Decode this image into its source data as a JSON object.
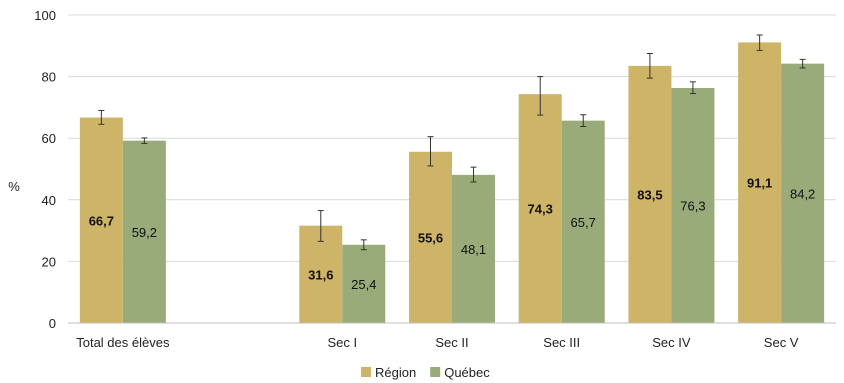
{
  "chart_data": {
    "type": "bar",
    "ylabel": "%",
    "ylim": [
      0,
      100
    ],
    "yticks": [
      0,
      20,
      40,
      60,
      80,
      100
    ],
    "grid": true,
    "legend_position": "bottom",
    "categories": [
      "Total des élèves",
      "",
      "Sec I",
      "Sec II",
      "Sec III",
      "Sec IV",
      "Sec V"
    ],
    "series": [
      {
        "name": "Région",
        "color": "#CDB466",
        "bold_labels": true,
        "values": [
          66.7,
          null,
          31.6,
          55.6,
          74.3,
          83.5,
          91.1
        ],
        "labels": [
          "66,7",
          "",
          "31,6",
          "55,6",
          "74,3",
          "83,5",
          "91,1"
        ],
        "error_low": [
          64.5,
          null,
          26.5,
          51.0,
          67.5,
          79.5,
          88.5
        ],
        "error_high": [
          69.0,
          null,
          36.5,
          60.5,
          80.0,
          87.5,
          93.5
        ]
      },
      {
        "name": "Québec",
        "color": "#98AB79",
        "bold_labels": false,
        "values": [
          59.2,
          null,
          25.4,
          48.1,
          65.7,
          76.3,
          84.2
        ],
        "labels": [
          "59,2",
          "",
          "25,4",
          "48,1",
          "65,7",
          "76,3",
          "84,2"
        ],
        "error_low": [
          58.3,
          null,
          23.8,
          45.8,
          63.8,
          74.5,
          82.8
        ],
        "error_high": [
          60.1,
          null,
          27.0,
          50.6,
          67.6,
          78.3,
          85.6
        ]
      }
    ]
  }
}
